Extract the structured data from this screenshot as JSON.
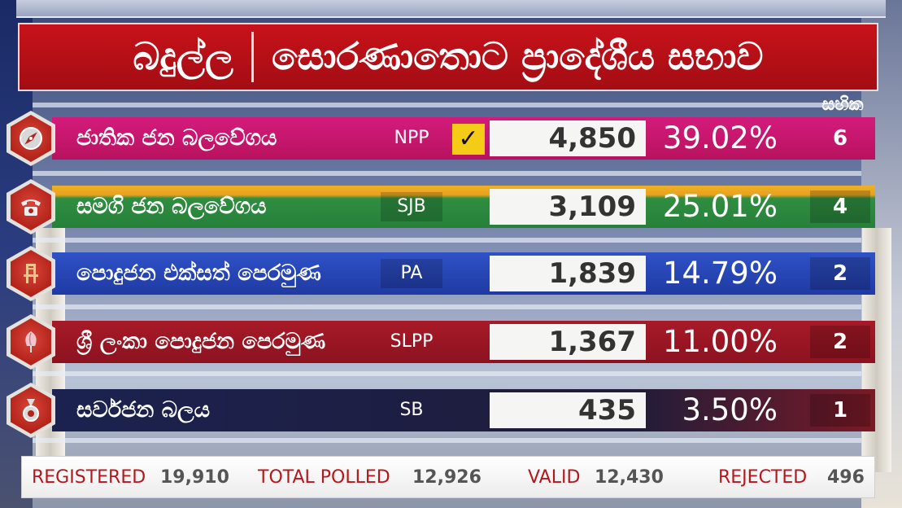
{
  "header": {
    "district": "බදුල්ල",
    "council": "සොරණාතොට ප්‍රාදේශීය සභාව"
  },
  "seats_label": "සහික",
  "parties": [
    {
      "name": "ජාතික ජන බලවේගය",
      "abbr": "NPP",
      "winner": true,
      "check": "✓",
      "votes": "4,850",
      "pct": "39.02%",
      "seats": "6",
      "color": "#c8166f",
      "icon": "compass-icon"
    },
    {
      "name": "සමගි ජන බලවේගය",
      "abbr": "SJB",
      "winner": false,
      "votes": "3,109",
      "pct": "25.01%",
      "seats": "4",
      "color": "#2e8a3c",
      "icon": "telephone-icon"
    },
    {
      "name": "පොදුජන එක්සත් පෙරමුණ",
      "abbr": "PA",
      "winner": false,
      "votes": "1,839",
      "pct": "14.79%",
      "seats": "2",
      "color": "#2646b8",
      "icon": "chair-icon"
    },
    {
      "name": "ශ්‍රී ලංකා පොදුජන පෙරමුණ",
      "abbr": "SLPP",
      "winner": false,
      "votes": "1,367",
      "pct": "11.00%",
      "seats": "2",
      "color": "#9b1622",
      "icon": "flower-bud-icon"
    },
    {
      "name": "සර්වජන බලය",
      "abbr": "SB",
      "winner": false,
      "votes": "435",
      "pct": "3.50%",
      "seats": "1",
      "color": "#1d2140",
      "icon": "medal-icon"
    }
  ],
  "footer": {
    "registered_label": "REGISTERED",
    "registered": "19,910",
    "polled_label": "TOTAL POLLED",
    "polled": "12,926",
    "valid_label": "VALID",
    "valid": "12,430",
    "rejected_label": "REJECTED",
    "rejected": "496"
  }
}
